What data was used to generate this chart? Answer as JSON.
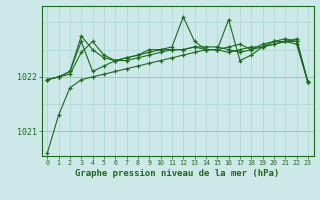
{
  "bg_color": "#cce8e8",
  "plot_bg_color": "#cce8e8",
  "grid_color": "#aad4d4",
  "line_color": "#1a6b1a",
  "title": "Graphe pression niveau de la mer (hPa)",
  "yticks": [
    1021,
    1022
  ],
  "ylim": [
    1020.55,
    1023.3
  ],
  "xlim": [
    -0.5,
    23.5
  ],
  "xticks": [
    0,
    1,
    2,
    3,
    4,
    5,
    6,
    7,
    8,
    9,
    10,
    11,
    12,
    13,
    14,
    15,
    16,
    17,
    18,
    19,
    20,
    21,
    22,
    23
  ],
  "series": [
    [
      1020.6,
      1021.3,
      1021.8,
      1021.95,
      1022.0,
      1022.05,
      1022.1,
      1022.15,
      1022.2,
      1022.25,
      1022.3,
      1022.35,
      1022.4,
      1022.45,
      1022.5,
      1022.5,
      1022.45,
      1022.5,
      1022.55,
      1022.55,
      1022.6,
      1022.65,
      1022.6,
      1021.9
    ],
    [
      1021.95,
      1022.0,
      1022.05,
      1022.45,
      1022.65,
      1022.4,
      1022.3,
      1022.3,
      1022.35,
      1022.4,
      1022.45,
      1022.5,
      1022.5,
      1022.55,
      1022.5,
      1022.5,
      1022.55,
      1022.6,
      1022.5,
      1022.6,
      1022.65,
      1022.7,
      1022.65,
      1021.9
    ],
    [
      1021.95,
      1022.0,
      1022.1,
      1022.75,
      1022.5,
      1022.35,
      1022.3,
      1022.35,
      1022.4,
      1022.45,
      1022.5,
      1022.55,
      1023.1,
      1022.65,
      1022.5,
      1022.5,
      1023.05,
      1022.3,
      1022.4,
      1022.55,
      1022.6,
      1022.65,
      1022.7,
      1021.9
    ],
    [
      1021.95,
      1022.0,
      1022.1,
      1022.65,
      1022.1,
      1022.2,
      1022.3,
      1022.35,
      1022.4,
      1022.5,
      1022.5,
      1022.5,
      1022.5,
      1022.55,
      1022.55,
      1022.55,
      1022.5,
      1022.45,
      1022.5,
      1022.55,
      1022.65,
      1022.65,
      1022.65,
      1021.9
    ]
  ]
}
